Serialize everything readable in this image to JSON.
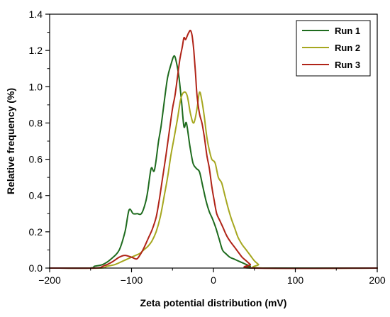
{
  "chart_data": {
    "type": "line",
    "title": "",
    "xlabel": "Zeta potential distribution (mV)",
    "ylabel": "Relative frequency (%)",
    "xlim": [
      -200,
      200
    ],
    "ylim": [
      0,
      1.4
    ],
    "xticks": [
      -200,
      -100,
      0,
      100,
      200
    ],
    "xtick_labels": [
      "−200",
      "−100",
      "0",
      "100",
      "200"
    ],
    "yticks": [
      0.0,
      0.2,
      0.4,
      0.6,
      0.8,
      1.0,
      1.2,
      1.4
    ],
    "ytick_labels": [
      "0.0",
      "0.2",
      "0.4",
      "0.6",
      "0.8",
      "1.0",
      "1.2",
      "1.4"
    ],
    "grid": false,
    "legend_position": "top-right",
    "series": [
      {
        "name": "Run 1",
        "color": "#1e6b1e",
        "x": [
          -200,
          -152,
          -145,
          -135,
          -125,
          -115,
          -108,
          -103,
          -98,
          -93,
          -88,
          -83,
          -80,
          -76,
          -72,
          -67,
          -64,
          -60,
          -56,
          -52,
          -48,
          -45,
          -42,
          -39,
          -36,
          -33,
          -29,
          -25,
          -21,
          -17,
          -13,
          -9,
          -5,
          -1,
          3,
          7,
          11,
          15,
          20,
          25,
          30,
          35,
          40,
          45,
          50,
          200
        ],
        "y": [
          0.0,
          0.0,
          0.01,
          0.02,
          0.05,
          0.1,
          0.2,
          0.32,
          0.3,
          0.3,
          0.3,
          0.36,
          0.43,
          0.55,
          0.54,
          0.7,
          0.78,
          0.92,
          1.05,
          1.12,
          1.17,
          1.13,
          1.05,
          0.92,
          0.78,
          0.8,
          0.68,
          0.58,
          0.55,
          0.53,
          0.45,
          0.37,
          0.31,
          0.27,
          0.22,
          0.16,
          0.1,
          0.08,
          0.06,
          0.05,
          0.04,
          0.03,
          0.02,
          0.01,
          0.0,
          0.0
        ]
      },
      {
        "name": "Run 2",
        "color": "#a6a71f",
        "x": [
          -200,
          -140,
          -130,
          -120,
          -110,
          -100,
          -95,
          -90,
          -85,
          -80,
          -75,
          -70,
          -65,
          -60,
          -56,
          -52,
          -48,
          -44,
          -40,
          -36,
          -32,
          -28,
          -24,
          -20,
          -17,
          -14,
          -11,
          -8,
          -5,
          -2,
          2,
          6,
          10,
          14,
          18,
          22,
          26,
          30,
          35,
          40,
          45,
          50,
          55,
          60,
          200
        ],
        "y": [
          0.0,
          0.0,
          0.01,
          0.02,
          0.04,
          0.06,
          0.07,
          0.08,
          0.1,
          0.12,
          0.15,
          0.2,
          0.28,
          0.4,
          0.5,
          0.62,
          0.72,
          0.82,
          0.93,
          0.97,
          0.95,
          0.85,
          0.8,
          0.88,
          0.97,
          0.92,
          0.83,
          0.72,
          0.65,
          0.6,
          0.58,
          0.5,
          0.47,
          0.4,
          0.33,
          0.27,
          0.22,
          0.17,
          0.13,
          0.1,
          0.07,
          0.04,
          0.02,
          0.0,
          0.0
        ]
      },
      {
        "name": "Run 3",
        "color": "#b02418",
        "x": [
          -200,
          -145,
          -135,
          -125,
          -115,
          -108,
          -100,
          -94,
          -90,
          -85,
          -80,
          -75,
          -70,
          -66,
          -62,
          -58,
          -54,
          -50,
          -47,
          -44,
          -41,
          -38,
          -36,
          -34,
          -32,
          -30,
          -28,
          -26,
          -24,
          -22,
          -20,
          -17,
          -14,
          -11,
          -8,
          -5,
          -2,
          1,
          4,
          8,
          12,
          16,
          20,
          25,
          30,
          35,
          40,
          45,
          50,
          200
        ],
        "y": [
          0.0,
          0.0,
          0.01,
          0.03,
          0.06,
          0.07,
          0.06,
          0.05,
          0.07,
          0.11,
          0.16,
          0.21,
          0.28,
          0.38,
          0.5,
          0.62,
          0.75,
          0.88,
          0.95,
          1.05,
          1.15,
          1.22,
          1.27,
          1.26,
          1.28,
          1.3,
          1.31,
          1.28,
          1.2,
          1.08,
          0.95,
          0.85,
          0.8,
          0.72,
          0.62,
          0.55,
          0.45,
          0.37,
          0.3,
          0.26,
          0.22,
          0.18,
          0.15,
          0.12,
          0.09,
          0.06,
          0.04,
          0.02,
          0.0,
          0.0
        ]
      }
    ]
  }
}
